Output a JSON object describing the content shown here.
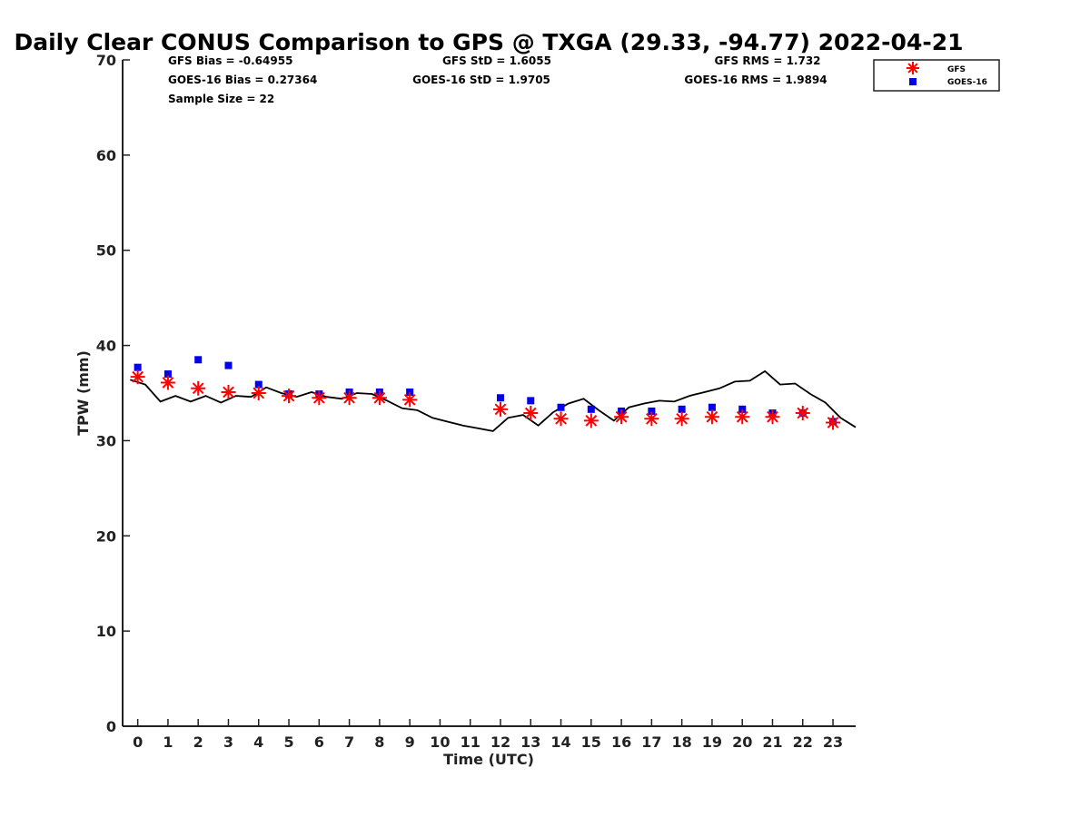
{
  "chart_data": {
    "type": "line",
    "title": "Daily Clear CONUS Comparison to GPS @ TXGA (29.33, -94.77) 2022-04-21",
    "xlabel": "Time (UTC)",
    "ylabel": "TPW (mm)",
    "xlim": [
      -0.5,
      23.75
    ],
    "ylim": [
      0,
      70
    ],
    "x_ticks": [
      0,
      1,
      2,
      3,
      4,
      5,
      6,
      7,
      8,
      9,
      10,
      11,
      12,
      13,
      14,
      15,
      16,
      17,
      18,
      19,
      20,
      21,
      22,
      23
    ],
    "y_ticks": [
      0,
      10,
      20,
      30,
      40,
      50,
      60,
      70
    ],
    "grid": false,
    "legend_position": "top-right",
    "series": [
      {
        "name": "GFS",
        "style": "asterisk-marker",
        "color": "#ff0000",
        "x": [
          0,
          1,
          2,
          3,
          4,
          5,
          6,
          7,
          8,
          9,
          12,
          13,
          14,
          15,
          16,
          17,
          18,
          19,
          20,
          21,
          22,
          23
        ],
        "y": [
          36.7,
          36.1,
          35.5,
          35.1,
          35.0,
          34.7,
          34.5,
          34.5,
          34.5,
          34.3,
          33.3,
          32.9,
          32.3,
          32.1,
          32.5,
          32.3,
          32.3,
          32.5,
          32.5,
          32.5,
          32.9,
          31.9
        ]
      },
      {
        "name": "GOES-16",
        "style": "square-marker",
        "color": "#0000ee",
        "x": [
          0,
          1,
          2,
          3,
          4,
          5,
          6,
          7,
          8,
          9,
          12,
          13,
          14,
          15,
          16,
          17,
          18,
          19,
          20,
          21,
          22,
          23
        ],
        "y": [
          37.7,
          37.0,
          38.5,
          37.9,
          35.9,
          34.9,
          34.9,
          35.1,
          35.1,
          35.1,
          34.5,
          34.2,
          33.5,
          33.3,
          33.1,
          33.1,
          33.3,
          33.5,
          33.3,
          32.9,
          32.9,
          32.0
        ]
      },
      {
        "style": "solid-line",
        "color": "#000000",
        "x": [
          -0.25,
          0.25,
          0.75,
          1.25,
          1.75,
          2.25,
          2.75,
          3.25,
          3.75,
          4.25,
          4.75,
          5.25,
          5.75,
          6.25,
          6.75,
          7.25,
          7.75,
          8.25,
          8.75,
          9.25,
          9.75,
          10.25,
          10.75,
          11.25,
          11.75,
          12.25,
          12.75,
          13.25,
          13.75,
          14.25,
          14.75,
          15.25,
          15.75,
          16.25,
          16.75,
          17.25,
          17.75,
          18.25,
          18.75,
          19.25,
          19.75,
          20.25,
          20.75,
          21.25,
          21.75,
          22.25,
          22.75,
          23.25,
          23.75
        ],
        "y": [
          36.4,
          35.9,
          34.1,
          34.7,
          34.1,
          34.7,
          34.0,
          34.7,
          34.6,
          35.6,
          35.0,
          34.6,
          35.1,
          34.6,
          34.4,
          35.0,
          34.9,
          34.2,
          33.4,
          33.2,
          32.4,
          32.0,
          31.6,
          31.3,
          31.0,
          32.4,
          32.7,
          31.6,
          33.0,
          33.9,
          34.4,
          33.2,
          32.1,
          33.5,
          33.9,
          34.2,
          34.1,
          34.7,
          35.1,
          35.5,
          36.2,
          36.3,
          37.3,
          35.9,
          36.0,
          34.9,
          34.0,
          32.4,
          31.4
        ]
      }
    ],
    "annotations": [
      {
        "text": "GFS Bias = -0.64955",
        "pos": "row1-left"
      },
      {
        "text": "GFS StD = 1.6055",
        "pos": "row1-center"
      },
      {
        "text": "GFS RMS = 1.732",
        "pos": "row1-right"
      },
      {
        "text": "GOES-16 Bias = 0.27364",
        "pos": "row2-left"
      },
      {
        "text": "GOES-16 StD = 1.9705",
        "pos": "row2-center"
      },
      {
        "text": "GOES-16 RMS = 1.9894",
        "pos": "row2-right"
      },
      {
        "text": "Sample Size = 22",
        "pos": "row3-left"
      }
    ]
  }
}
